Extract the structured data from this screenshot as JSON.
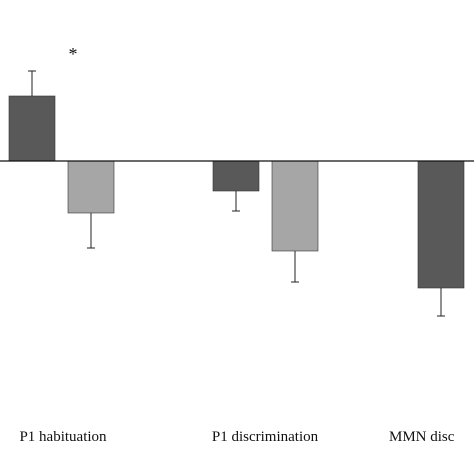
{
  "chart_data": {
    "type": "bar",
    "title": "",
    "xlabel": "",
    "ylabel": "",
    "categories": [
      "P1 habituation",
      "P1 discrimination",
      "MMN disc"
    ],
    "series": [
      {
        "values": [
          0.65,
          -0.3,
          -1.27
        ],
        "errors": [
          0.25,
          0.2,
          0.28
        ],
        "color": "#595959"
      },
      {
        "values": [
          -0.52,
          -0.9,
          null
        ],
        "errors": [
          0.35,
          0.31,
          null
        ],
        "color": "#a6a6a6"
      }
    ],
    "annotations": [
      {
        "text": "*",
        "category_index": 0
      }
    ],
    "ylim": [
      -2.6,
      1.6
    ],
    "grid": false,
    "zero_line": true,
    "legend": "none"
  }
}
